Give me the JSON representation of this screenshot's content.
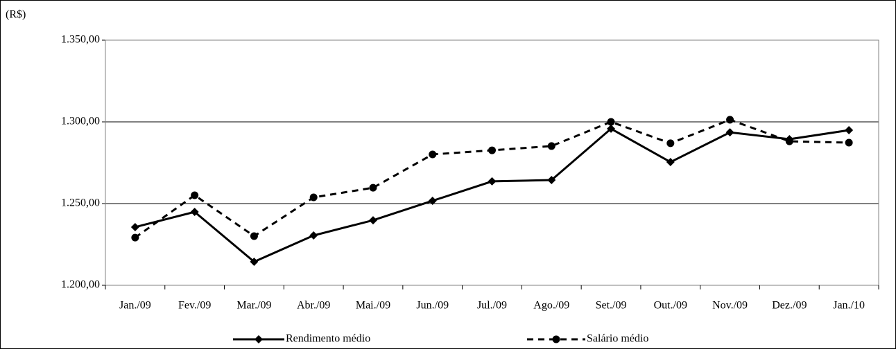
{
  "chart_data": {
    "type": "line",
    "y_label": "(R$)",
    "categories": [
      "Jan./09",
      "Fev./09",
      "Mar./09",
      "Abr./09",
      "Mai./09",
      "Jun./09",
      "Jul./09",
      "Ago./09",
      "Set./09",
      "Out./09",
      "Nov./09",
      "Dez./09",
      "Jan./10"
    ],
    "series": [
      {
        "name": "Rendimento médio",
        "color": "#000000",
        "line_style": "solid",
        "marker": "diamond",
        "values": [
          1235.6,
          1244.9,
          1214.4,
          1230.5,
          1239.8,
          1251.7,
          1263.6,
          1264.4,
          1295.8,
          1275.4,
          1293.6,
          1289.4,
          1294.9
        ]
      },
      {
        "name": "Salário médio",
        "color": "#000000",
        "line_style": "dashed",
        "marker": "circle",
        "values": [
          1229.2,
          1255.1,
          1230.1,
          1253.8,
          1259.7,
          1280.1,
          1282.6,
          1285.2,
          1300.0,
          1286.9,
          1301.3,
          1288.1,
          1287.3
        ]
      }
    ],
    "ylim": [
      1200,
      1350
    ],
    "yticks": [
      {
        "value": 1200,
        "label": "1.200,00"
      },
      {
        "value": 1250,
        "label": "1.250,00"
      },
      {
        "value": 1300,
        "label": "1.300,00"
      },
      {
        "value": 1350,
        "label": "1.350,00"
      }
    ],
    "grid": true,
    "legend": "bottom"
  }
}
